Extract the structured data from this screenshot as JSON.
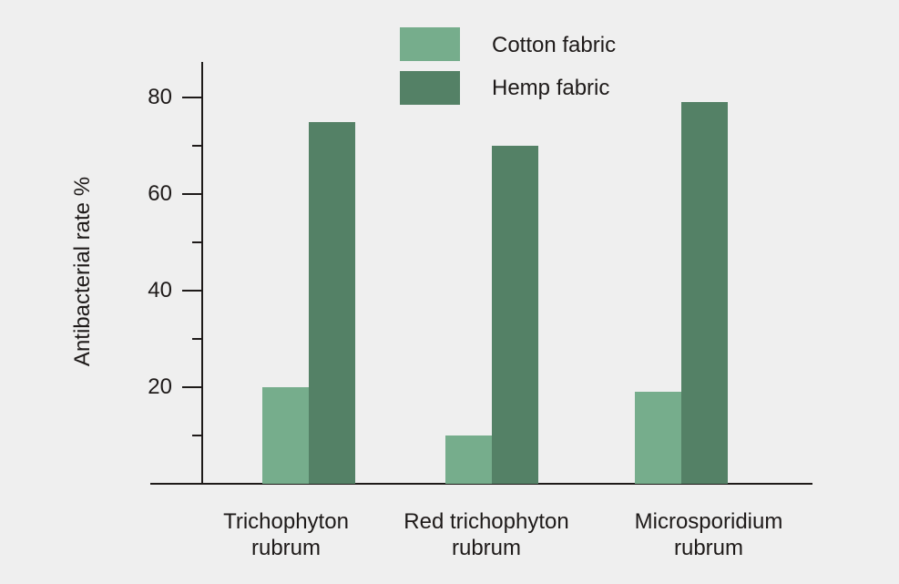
{
  "chart_data": {
    "type": "bar",
    "title": "",
    "xlabel": "",
    "ylabel": "Antibacterial rate %",
    "categories": [
      "Trichophyton rubrum",
      "Red trichophyton rubrum",
      "Microsporidium rubrum"
    ],
    "category_lines": [
      [
        "Trichophyton",
        "rubrum"
      ],
      [
        "Red trichophyton",
        "rubrum"
      ],
      [
        "Microsporidium",
        "rubrum"
      ]
    ],
    "series": [
      {
        "name": "Cotton fabric",
        "color": "#76ad8c",
        "values": [
          20,
          10,
          19
        ]
      },
      {
        "name": "Hemp fabric",
        "color": "#548166",
        "values": [
          75,
          70,
          79
        ]
      }
    ],
    "ylim": [
      0,
      80
    ],
    "yticks_major": [
      20,
      40,
      60,
      80
    ],
    "yticks_minor": [
      10,
      30,
      50,
      70
    ],
    "grid": false,
    "legend_position": "top-center"
  },
  "legend": {
    "items": [
      {
        "label": "Cotton fabric",
        "color": "#76ad8c"
      },
      {
        "label": "Hemp fabric",
        "color": "#548166"
      }
    ]
  },
  "axis": {
    "ylabel": "Antibacterial rate %",
    "tick_labels": [
      "80",
      "60",
      "40",
      "20"
    ]
  }
}
